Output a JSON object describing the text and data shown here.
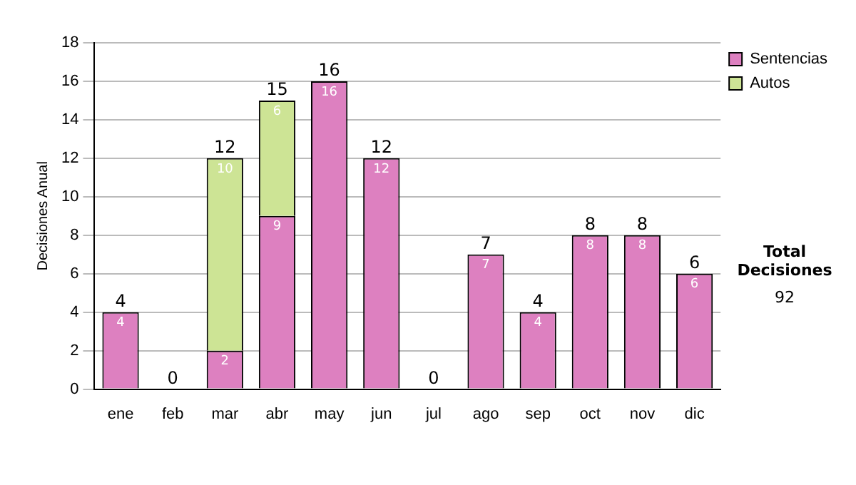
{
  "chart_data": {
    "type": "bar",
    "stacked": true,
    "ylabel": "Decisiones Anual",
    "categories": [
      "ene",
      "feb",
      "mar",
      "abr",
      "may",
      "jun",
      "jul",
      "ago",
      "sep",
      "oct",
      "nov",
      "dic"
    ],
    "series": [
      {
        "name": "Sentencias",
        "color": "#dd80c0",
        "values": [
          4,
          0,
          2,
          9,
          16,
          12,
          0,
          7,
          4,
          8,
          8,
          6
        ],
        "value_labels": [
          "4",
          null,
          "2",
          "9",
          "16",
          "12",
          null,
          "7",
          "4",
          "8",
          "8",
          "6"
        ]
      },
      {
        "name": "Autos",
        "color": "#cde495",
        "values": [
          0,
          0,
          10,
          6,
          0,
          0,
          0,
          0,
          0,
          0,
          0,
          0
        ],
        "value_labels": [
          null,
          null,
          "10",
          "6",
          null,
          null,
          null,
          null,
          null,
          null,
          null,
          null
        ]
      }
    ],
    "totals": [
      "4",
      "0",
      "12",
      "15",
      "16",
      "12",
      "0",
      "7",
      "4",
      "8",
      "8",
      "6"
    ],
    "ylim": [
      0,
      18
    ],
    "yticks": [
      0,
      2,
      4,
      6,
      8,
      10,
      12,
      14,
      16,
      18
    ],
    "grid": "y",
    "legend": "right",
    "annotations": [
      "Total Decisiones",
      "92"
    ]
  }
}
